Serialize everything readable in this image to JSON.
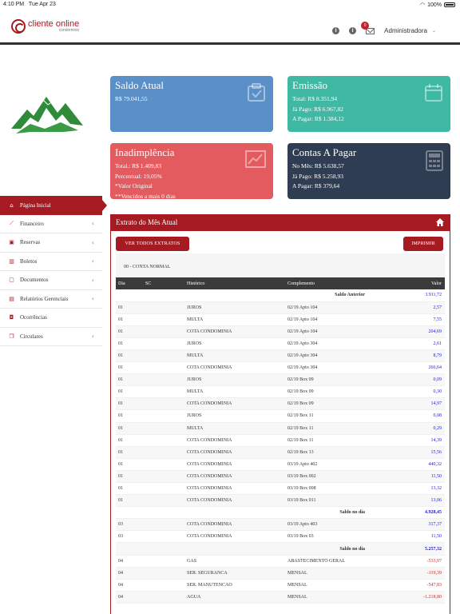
{
  "status": {
    "time": "4:10 PM",
    "date": "Tue Apr 23",
    "battery": "100%"
  },
  "brand": {
    "name": "cliente online",
    "sub": "condominio"
  },
  "header": {
    "user": "Administradora",
    "mail_badge": "0"
  },
  "sidebar": {
    "items": [
      {
        "label": "Página Inicial",
        "icon": "home-icon"
      },
      {
        "label": "Financeiro",
        "icon": "chart-icon"
      },
      {
        "label": "Reservas",
        "icon": "calendar-icon"
      },
      {
        "label": "Boletos",
        "icon": "barcode-icon"
      },
      {
        "label": "Documentos",
        "icon": "documents-icon"
      },
      {
        "label": "Relatórios Gerenciais",
        "icon": "report-icon"
      },
      {
        "label": "Ocorrências",
        "icon": "alert-icon"
      },
      {
        "label": "Circulares",
        "icon": "copy-icon"
      }
    ]
  },
  "cards": {
    "saldo": {
      "title": "Saldo Atual",
      "lines": [
        "R$ 79.041,55"
      ]
    },
    "emissao": {
      "title": "Emissão",
      "lines": [
        "Total: R$ 8.351,94",
        "Já Pago: R$ 6.967,82",
        "A Pagar: R$ 1.384,12"
      ]
    },
    "inad": {
      "title": "Inadimplência",
      "lines": [
        "Total.: R$ 1.409,83",
        "Percentual: 19,05%",
        "*Valor Original",
        "**Vencidos a mais 0 dias"
      ]
    },
    "contas": {
      "title": "Contas A Pagar",
      "lines": [
        "No Mês: R$ 5.638,57",
        "Já Pago: R$ 5.258,93",
        "A Pagar: R$ 379,64"
      ]
    }
  },
  "extrato": {
    "title": "Extrato do Mês Atual",
    "btn_all": "VER TODOS EXTRATOS",
    "btn_print": "IMPRIMIR",
    "conta": "00 - CONTA NORMAL",
    "columns": [
      "Dia",
      "SC",
      "Histórico",
      "Complemento",
      "Valor"
    ],
    "saldo_anterior_label": "Saldo Anterior",
    "saldo_anterior": "3.911,72",
    "saldo_dia_label": "Saldo no dia",
    "rows": [
      {
        "dia": "01",
        "sc": "",
        "hist": "JUROS",
        "comp": "02/19 Apto 104",
        "val": "2,57",
        "neg": false
      },
      {
        "dia": "01",
        "sc": "",
        "hist": "MULTA",
        "comp": "02/19 Apto 104",
        "val": "7,55",
        "neg": false
      },
      {
        "dia": "01",
        "sc": "",
        "hist": "COTA CONDOMINIA",
        "comp": "02/19 Apto 104",
        "val": "204,69",
        "neg": false
      },
      {
        "dia": "01",
        "sc": "",
        "hist": "JUROS",
        "comp": "02/19 Apto 304",
        "val": "2,61",
        "neg": false
      },
      {
        "dia": "01",
        "sc": "",
        "hist": "MULTA",
        "comp": "02/19 Apto 304",
        "val": "8,79",
        "neg": false
      },
      {
        "dia": "01",
        "sc": "",
        "hist": "COTA CONDOMINIA",
        "comp": "02/19 Apto 304",
        "val": "266,64",
        "neg": false
      },
      {
        "dia": "01",
        "sc": "",
        "hist": "JUROS",
        "comp": "02/19 Box 09",
        "val": "0,09",
        "neg": false
      },
      {
        "dia": "01",
        "sc": "",
        "hist": "MULTA",
        "comp": "02/19 Box 09",
        "val": "0,30",
        "neg": false
      },
      {
        "dia": "01",
        "sc": "",
        "hist": "COTA CONDOMINIA",
        "comp": "02/19 Box 09",
        "val": "14,97",
        "neg": false
      },
      {
        "dia": "01",
        "sc": "",
        "hist": "JUROS",
        "comp": "02/19 Box 11",
        "val": "0,08",
        "neg": false
      },
      {
        "dia": "01",
        "sc": "",
        "hist": "MULTA",
        "comp": "02/19 Box 11",
        "val": "0,29",
        "neg": false
      },
      {
        "dia": "01",
        "sc": "",
        "hist": "COTA CONDOMINIA",
        "comp": "02/19 Box 11",
        "val": "14,39",
        "neg": false
      },
      {
        "dia": "01",
        "sc": "",
        "hist": "COTA CONDOMINIA",
        "comp": "02/19 Box 13",
        "val": "15,56",
        "neg": false
      },
      {
        "dia": "01",
        "sc": "",
        "hist": "COTA CONDOMINIA",
        "comp": "03/19 Apto 402",
        "val": "440,32",
        "neg": false
      },
      {
        "dia": "01",
        "sc": "",
        "hist": "COTA CONDOMINIA",
        "comp": "03/19 Box 002",
        "val": "11,50",
        "neg": false
      },
      {
        "dia": "01",
        "sc": "",
        "hist": "COTA CONDOMINIA",
        "comp": "03/19 Box 008",
        "val": "13,32",
        "neg": false
      },
      {
        "dia": "01",
        "sc": "",
        "hist": "COTA CONDOMINIA",
        "comp": "03/19 Box 011",
        "val": "13,06",
        "neg": false
      },
      {
        "saldo": "4.928,45"
      },
      {
        "dia": "03",
        "sc": "",
        "hist": "COTA CONDOMINIA",
        "comp": "03/19 Apto 403",
        "val": "317,37",
        "neg": false
      },
      {
        "dia": "03",
        "sc": "",
        "hist": "COTA CONDOMINIA",
        "comp": "03/19 Box 03",
        "val": "11,50",
        "neg": false
      },
      {
        "saldo": "5.257,32"
      },
      {
        "dia": "04",
        "sc": "",
        "hist": "GAS",
        "comp": "ABASTECIMENTO GERAL",
        "val": "-533,97",
        "neg": true
      },
      {
        "dia": "04",
        "sc": "",
        "hist": "SER. SEGURANCA",
        "comp": "MENSAL",
        "val": "-119,39",
        "neg": true
      },
      {
        "dia": "04",
        "sc": "",
        "hist": "SER. MANUTENCAO",
        "comp": "MENSAL",
        "val": "-547,83",
        "neg": true
      },
      {
        "dia": "04",
        "sc": "",
        "hist": "AGUA",
        "comp": "MENSAL",
        "val": "-1.218,80",
        "neg": true
      }
    ]
  }
}
